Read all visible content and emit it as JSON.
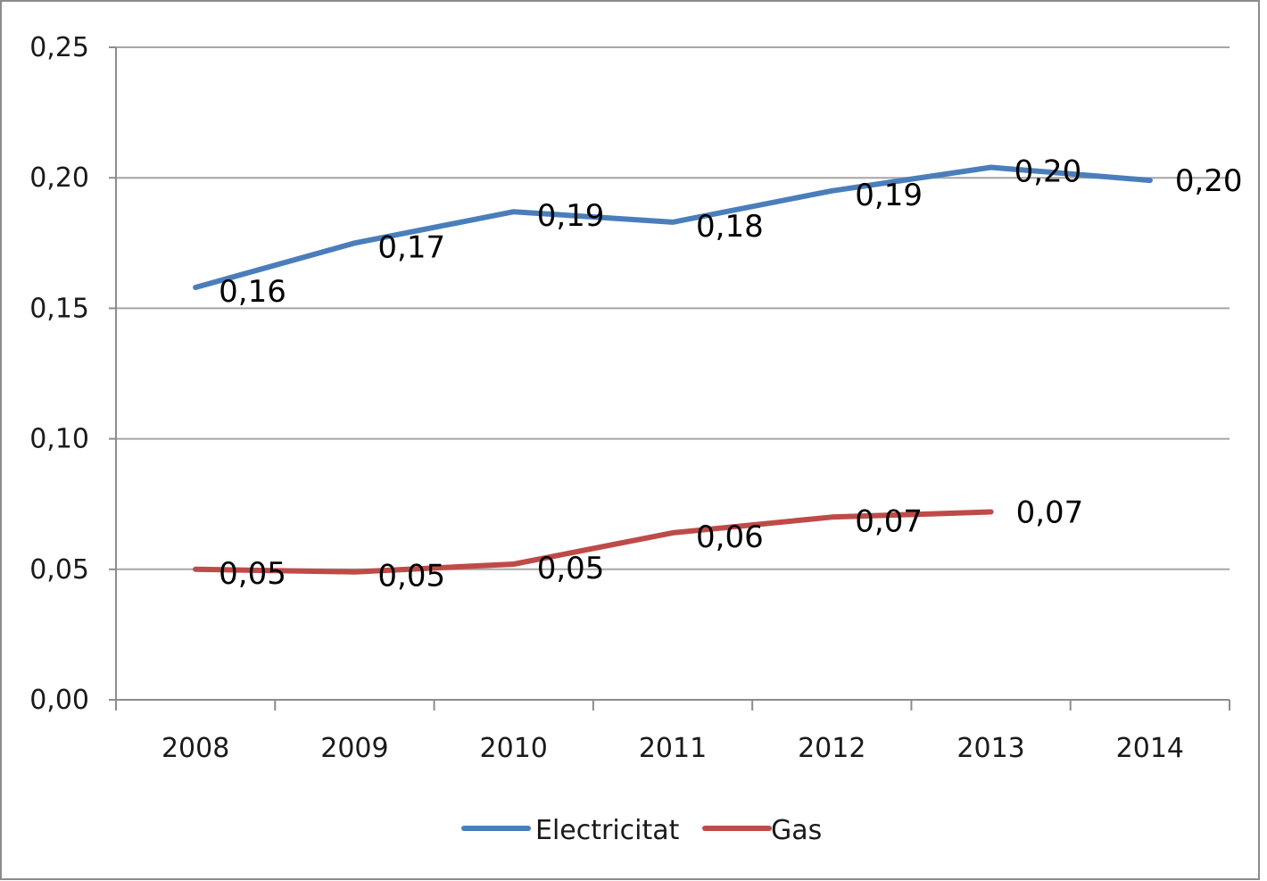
{
  "chart_data": {
    "type": "line",
    "title": "",
    "xlabel": "",
    "ylabel": "",
    "categories": [
      "2008",
      "2009",
      "2010",
      "2011",
      "2012",
      "2013",
      "2014"
    ],
    "ylim": [
      0,
      0.25
    ],
    "yticks": [
      "0,00",
      "0,05",
      "0,10",
      "0,15",
      "0,20",
      "0,25"
    ],
    "grid": true,
    "legend_position": "bottom",
    "series": [
      {
        "name": "Electricitat",
        "color": "#4a7ebb",
        "values": [
          0.158,
          0.175,
          0.187,
          0.183,
          0.195,
          0.204,
          0.199
        ],
        "labels": [
          "0,16",
          "0,17",
          "0,19",
          "0,18",
          "0,19",
          "0,20",
          "0,20"
        ]
      },
      {
        "name": "Gas",
        "color": "#be4b48",
        "values": [
          0.05,
          0.049,
          0.052,
          0.064,
          0.07,
          0.072,
          null
        ],
        "labels": [
          "0,05",
          "0,05",
          "0,05",
          "0,06",
          "0,07",
          "0,07",
          null
        ]
      }
    ]
  }
}
